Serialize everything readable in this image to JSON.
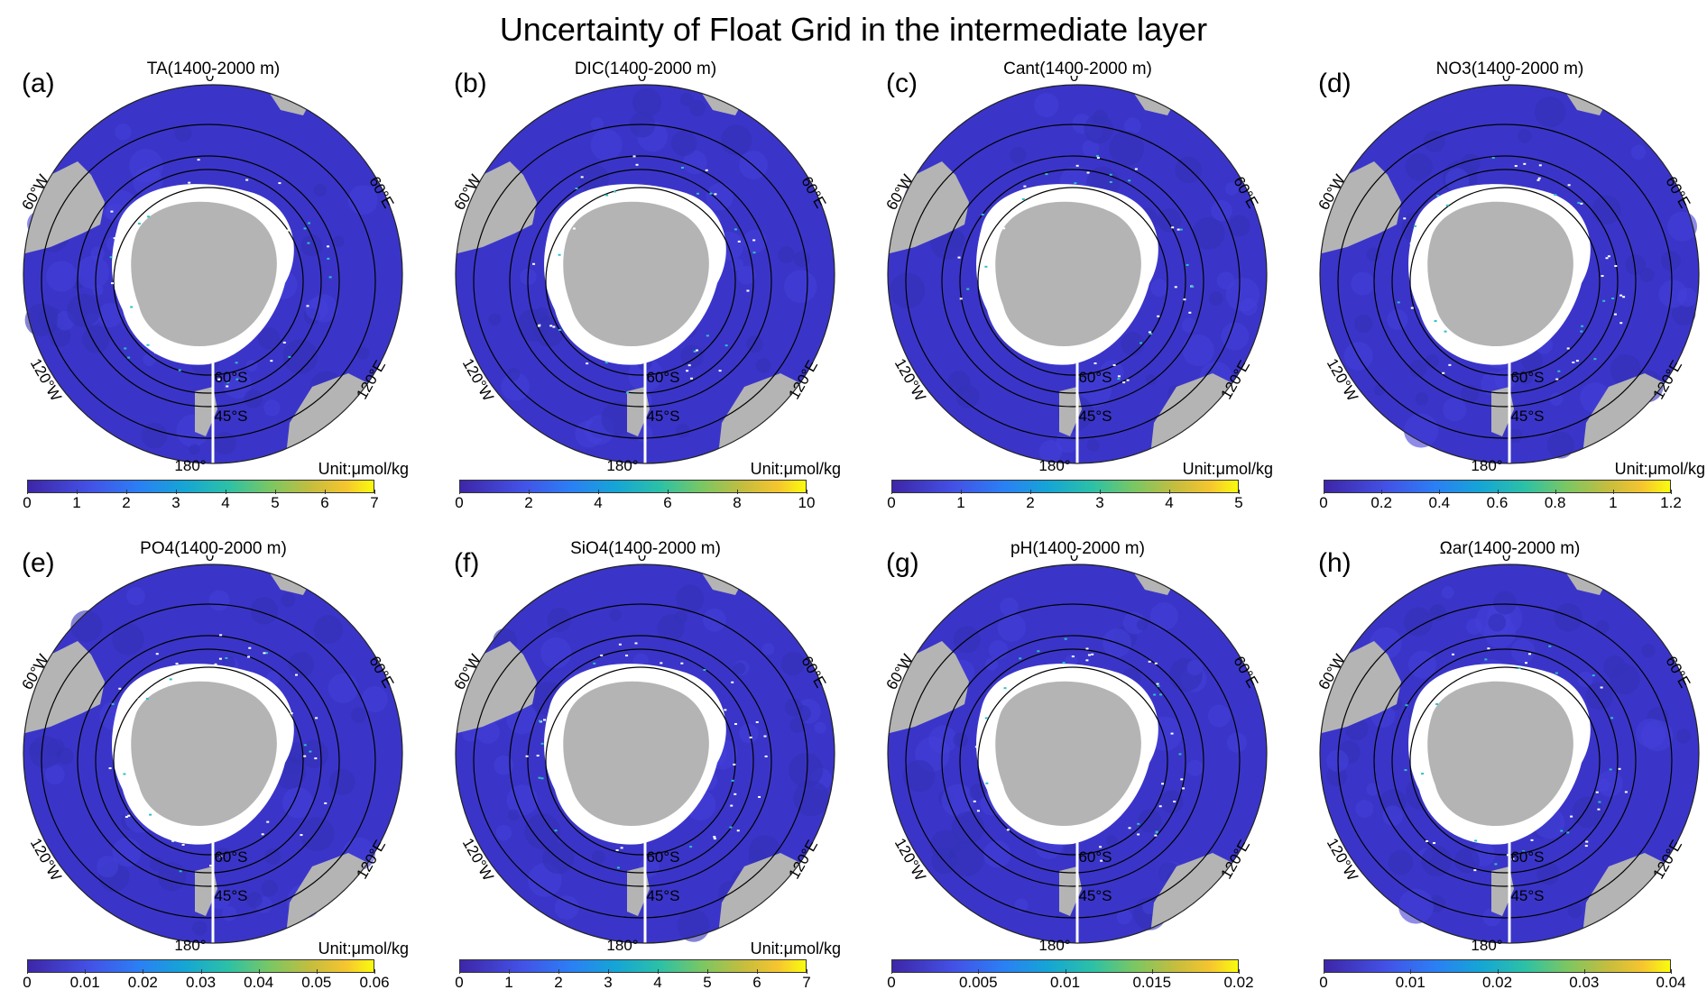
{
  "figure": {
    "title": "Uncertainty of Float Grid in the intermediate layer"
  },
  "map_labels": {
    "lon_top": "0°",
    "lon_bottom": "180°",
    "lon_upper_left": "60°W",
    "lon_upper_right": "60°E",
    "lon_lower_left": "120°W",
    "lon_lower_right": "120°E",
    "lat_inner": "60°S",
    "lat_outer": "45°S"
  },
  "panels": [
    {
      "letter": "(a)",
      "title": "TA(1400-2000 m)",
      "unit": "Unit:μmol/kg",
      "ticks": [
        "0",
        "1",
        "2",
        "3",
        "4",
        "5",
        "6",
        "7"
      ],
      "range": [
        0,
        7
      ]
    },
    {
      "letter": "(b)",
      "title": "DIC(1400-2000 m)",
      "unit": "Unit:μmol/kg",
      "ticks": [
        "0",
        "2",
        "4",
        "6",
        "8",
        "10"
      ],
      "range": [
        0,
        10
      ]
    },
    {
      "letter": "(c)",
      "title": "Cant(1400-2000 m)",
      "unit": "Unit:μmol/kg",
      "ticks": [
        "0",
        "1",
        "2",
        "3",
        "4",
        "5"
      ],
      "range": [
        0,
        5
      ]
    },
    {
      "letter": "(d)",
      "title": "NO3(1400-2000 m)",
      "unit": "Unit:μmol/kg",
      "ticks": [
        "0",
        "0.2",
        "0.4",
        "0.6",
        "0.8",
        "1",
        "1.2"
      ],
      "range": [
        0,
        1.2
      ]
    },
    {
      "letter": "(e)",
      "title": "PO4(1400-2000 m)",
      "unit": "Unit:μmol/kg",
      "ticks": [
        "0",
        "0.01",
        "0.02",
        "0.03",
        "0.04",
        "0.05",
        "0.06"
      ],
      "range": [
        0,
        0.06
      ]
    },
    {
      "letter": "(f)",
      "title": "SiO4(1400-2000 m)",
      "unit": "Unit:μmol/kg",
      "ticks": [
        "0",
        "1",
        "2",
        "3",
        "4",
        "5",
        "6",
        "7"
      ],
      "range": [
        0,
        7
      ]
    },
    {
      "letter": "(g)",
      "title": "pH(1400-2000 m)",
      "unit": "",
      "ticks": [
        "0",
        "0.005",
        "0.01",
        "0.015",
        "0.02"
      ],
      "range": [
        0,
        0.02
      ]
    },
    {
      "letter": "(h)",
      "title": "Ωar(1400-2000 m)",
      "unit": "",
      "ticks": [
        "0",
        "0.01",
        "0.02",
        "0.03",
        "0.04"
      ],
      "range": [
        0,
        0.04
      ]
    }
  ],
  "colors": {
    "ocean": "#3a35c8",
    "land": "#b4b4b4",
    "ice_gap": "#ffffff",
    "contour": "#000000"
  }
}
